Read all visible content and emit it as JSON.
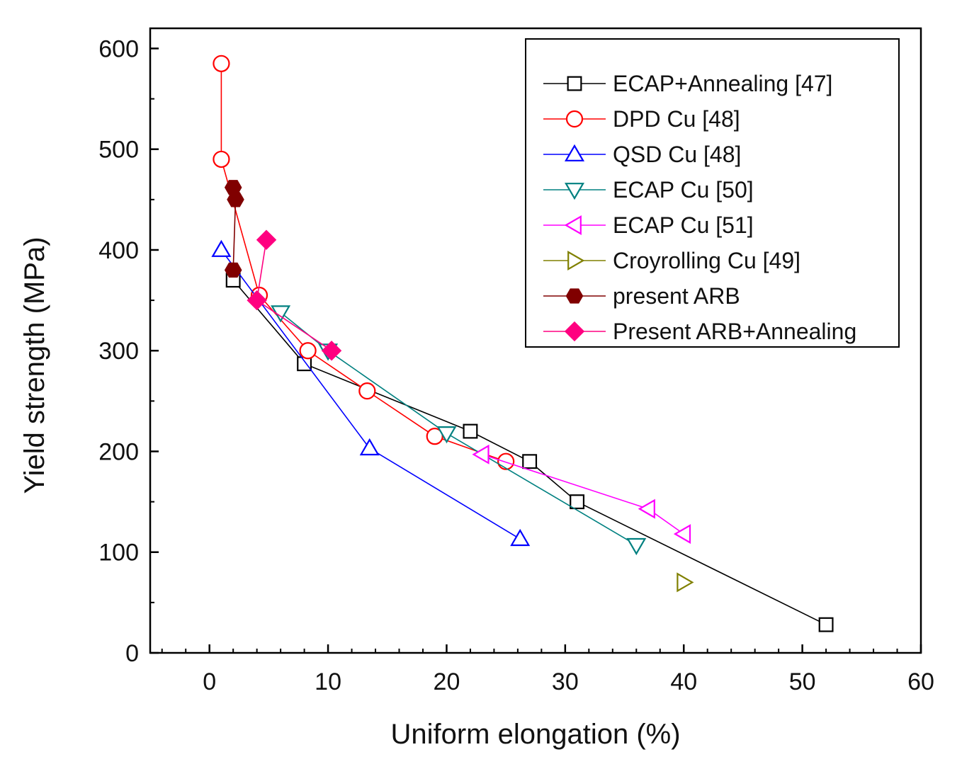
{
  "chart_data": {
    "type": "scatter",
    "title": "",
    "xlabel": "Uniform elongation (%)",
    "ylabel": "Yield strength (MPa)",
    "xlim": [
      -5,
      60
    ],
    "ylim": [
      0,
      620
    ],
    "xticks": [
      0,
      10,
      20,
      30,
      40,
      50,
      60
    ],
    "yticks": [
      0,
      100,
      200,
      300,
      400,
      500,
      600
    ],
    "legend_position": "top-right",
    "series": [
      {
        "name": "ECAP+Annealing [47]",
        "color": "#000000",
        "marker": "square",
        "filled": false,
        "points": [
          [
            2,
            370
          ],
          [
            8,
            287
          ],
          [
            22,
            220
          ],
          [
            27,
            190
          ],
          [
            31,
            150
          ],
          [
            52,
            28
          ]
        ]
      },
      {
        "name": "DPD Cu [48]",
        "color": "#ff0000",
        "marker": "circle",
        "filled": false,
        "points": [
          [
            1,
            585
          ],
          [
            1,
            490
          ],
          [
            4.2,
            355
          ],
          [
            8.3,
            300
          ],
          [
            13.3,
            260
          ],
          [
            19,
            215
          ],
          [
            25,
            190
          ]
        ]
      },
      {
        "name": "QSD Cu [48]",
        "color": "#0000ff",
        "marker": "triangle-up",
        "filled": false,
        "points": [
          [
            1,
            400
          ],
          [
            13.5,
            203
          ],
          [
            26.2,
            113
          ]
        ]
      },
      {
        "name": "ECAP Cu [50]",
        "color": "#008080",
        "marker": "triangle-down",
        "filled": false,
        "points": [
          [
            6,
            338
          ],
          [
            10,
            300
          ],
          [
            20,
            218
          ],
          [
            36,
            107
          ]
        ]
      },
      {
        "name": "ECAP Cu [51]",
        "color": "#ff00ff",
        "marker": "triangle-left",
        "filled": false,
        "points": [
          [
            23,
            197
          ],
          [
            37,
            143
          ],
          [
            40,
            118
          ]
        ]
      },
      {
        "name": "Croyrolling Cu [49]",
        "color": "#808000",
        "marker": "triangle-right",
        "filled": false,
        "points": [
          [
            40,
            70
          ]
        ]
      },
      {
        "name": "present ARB",
        "color": "#800000",
        "marker": "hexagon",
        "filled": true,
        "points": [
          [
            2,
            462
          ],
          [
            2.2,
            450
          ],
          [
            2,
            380
          ]
        ]
      },
      {
        "name": "Present ARB+Annealing",
        "color": "#ff0080",
        "marker": "diamond",
        "filled": true,
        "points": [
          [
            4.8,
            410
          ],
          [
            4,
            350
          ],
          [
            10.3,
            300
          ]
        ]
      }
    ]
  }
}
